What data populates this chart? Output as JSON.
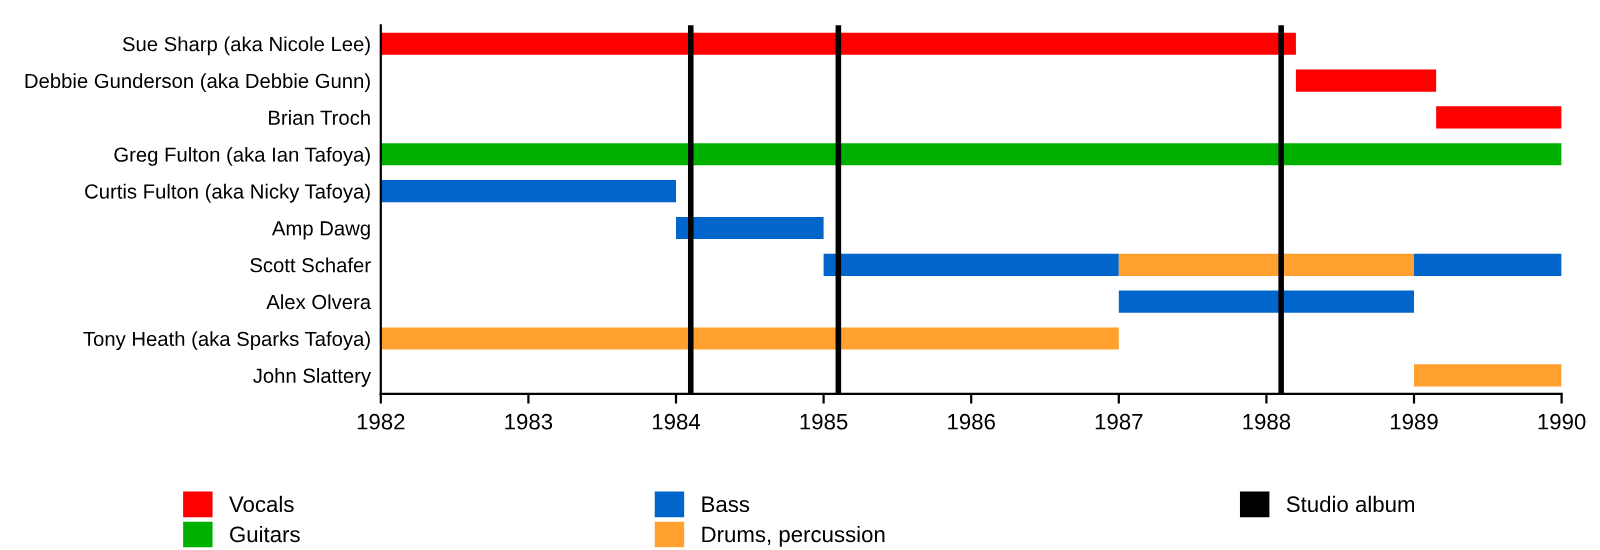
{
  "chart_data": {
    "type": "bar",
    "orientation": "horizontal",
    "categories": [
      "Sue Sharp (aka Nicole Lee)",
      "Debbie Gunderson (aka Debbie Gunn)",
      "Brian Troch",
      "Greg Fulton (aka Ian Tafoya)",
      "Curtis Fulton (aka Nicky Tafoya)",
      "Amp Dawg",
      "Scott Schafer",
      "Alex Olvera",
      "Tony Heath (aka Sparks Tafoya)",
      "John Slattery"
    ],
    "series": [
      {
        "name": "Vocals",
        "color": "#ff0000",
        "base": [
          1982,
          1988.2,
          1989.15,
          null,
          null,
          null,
          null,
          null,
          null,
          null
        ],
        "values": [
          6.2,
          0.95,
          0.85,
          null,
          null,
          null,
          null,
          null,
          null,
          null
        ]
      },
      {
        "name": "Guitars",
        "color": "#00b000",
        "base": [
          null,
          null,
          null,
          1982,
          null,
          null,
          null,
          null,
          null,
          null
        ],
        "values": [
          null,
          null,
          null,
          8,
          null,
          null,
          null,
          null,
          null,
          null
        ]
      },
      {
        "name": "Bass",
        "color": "#0066cc",
        "base": [
          null,
          null,
          null,
          null,
          1982,
          1984,
          1985,
          1987,
          null,
          null
        ],
        "values": [
          null,
          null,
          null,
          null,
          2,
          1,
          2,
          2,
          null,
          null
        ]
      },
      {
        "color": "#0066cc",
        "base": [
          null,
          null,
          null,
          null,
          null,
          null,
          1989,
          null,
          null,
          null
        ],
        "values": [
          null,
          null,
          null,
          null,
          null,
          null,
          1,
          null,
          null,
          null
        ]
      },
      {
        "name": "Drums, percussion",
        "color": "#ffa02f",
        "base": [
          null,
          null,
          null,
          null,
          null,
          null,
          1987,
          null,
          1982,
          1989
        ],
        "values": [
          null,
          null,
          null,
          null,
          null,
          null,
          2,
          null,
          5,
          1
        ]
      }
    ],
    "xlim": [
      1982,
      1990
    ],
    "xticks": [
      1982,
      1983,
      1984,
      1985,
      1986,
      1987,
      1988,
      1989,
      1990
    ],
    "ref_lines": [
      {
        "axis": "x",
        "value": 1984.1,
        "label": "Studio album",
        "color": "#000000"
      },
      {
        "axis": "x",
        "value": 1985.1,
        "color": "#000000"
      },
      {
        "axis": "x",
        "value": 1988.1,
        "color": "#000000"
      }
    ],
    "grid": false,
    "legend": "bottom"
  }
}
